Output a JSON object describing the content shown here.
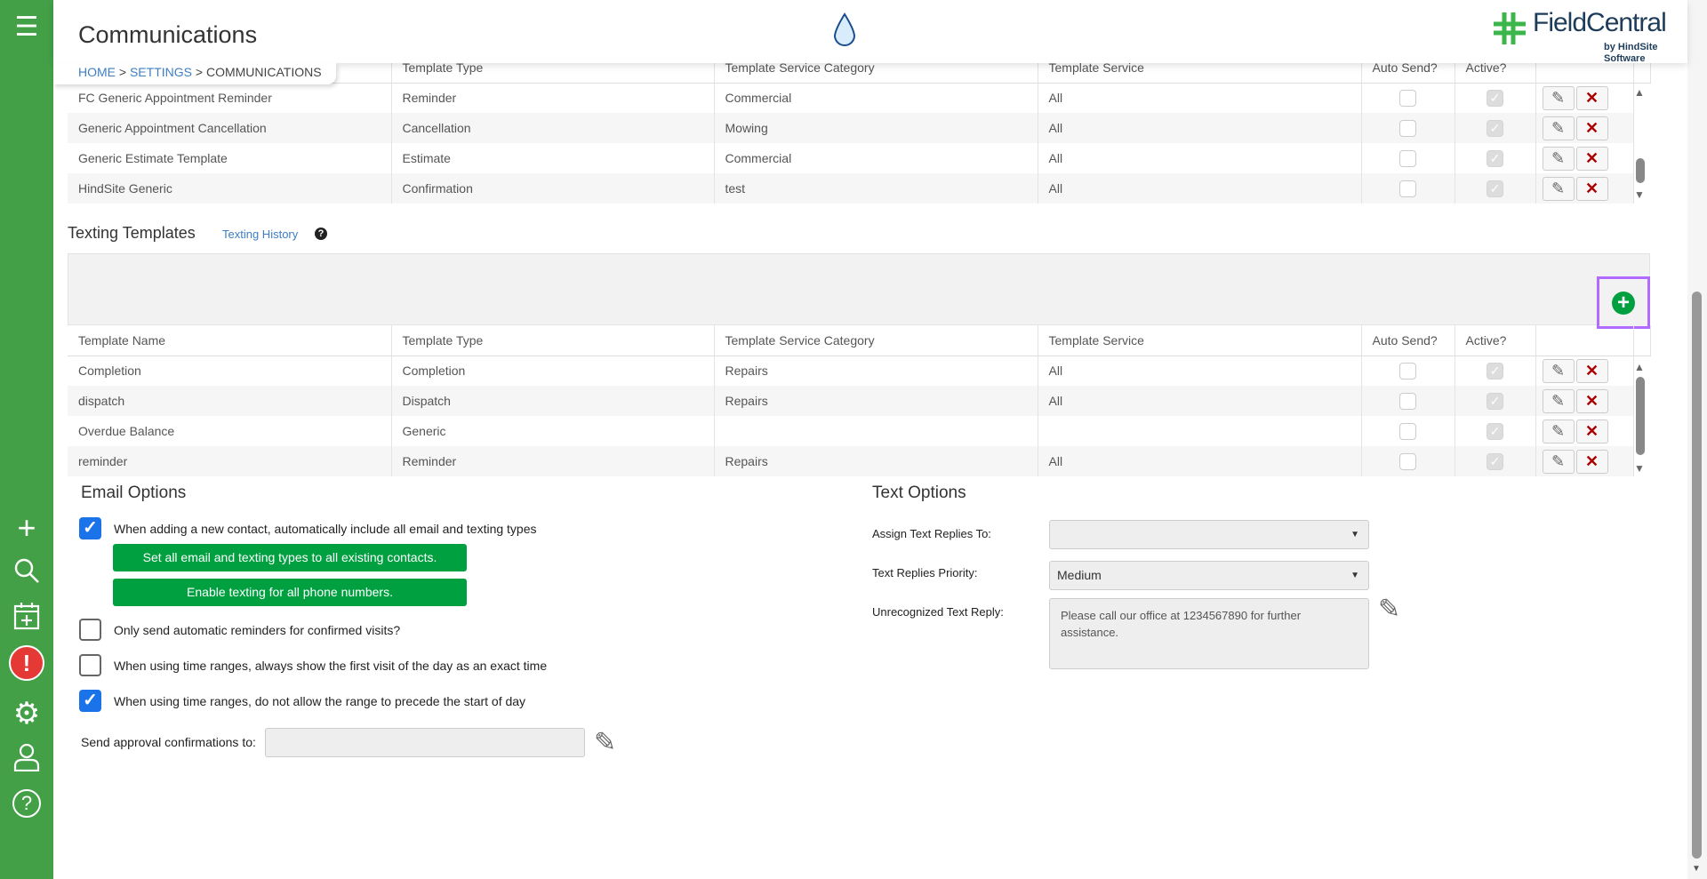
{
  "header": {
    "title": "Communications",
    "breadcrumb": {
      "home": "HOME",
      "settings": "SETTINGS",
      "current": "COMMUNICATIONS",
      "sep": " > "
    },
    "brand": "FieldCentral",
    "brand_sub": "by HindSite Software"
  },
  "columns": [
    "Template Name",
    "Template Type",
    "Template Service Category",
    "Template Service",
    "Auto Send?",
    "Active?"
  ],
  "email_templates": [
    {
      "name": "FC Generic Appointment Reminder",
      "type": "Reminder",
      "category": "Commercial",
      "service": "All",
      "auto": false,
      "active": true
    },
    {
      "name": "Generic Appointment Cancellation",
      "type": "Cancellation",
      "category": "Mowing",
      "service": "All",
      "auto": false,
      "active": true
    },
    {
      "name": "Generic Estimate Template",
      "type": "Estimate",
      "category": "Commercial",
      "service": "All",
      "auto": false,
      "active": true
    },
    {
      "name": "HindSite Generic",
      "type": "Confirmation",
      "category": "test",
      "service": "All",
      "auto": false,
      "active": true
    }
  ],
  "texting": {
    "title": "Texting Templates",
    "history_link": "Texting History",
    "rows": [
      {
        "name": "Completion",
        "type": "Completion",
        "category": "Repairs",
        "service": "All",
        "auto": false,
        "active": true
      },
      {
        "name": "dispatch",
        "type": "Dispatch",
        "category": "Repairs",
        "service": "All",
        "auto": false,
        "active": true
      },
      {
        "name": "Overdue Balance",
        "type": "Generic",
        "category": "",
        "service": "",
        "auto": false,
        "active": true
      },
      {
        "name": "reminder",
        "type": "Reminder",
        "category": "Repairs",
        "service": "All",
        "auto": false,
        "active": true
      }
    ]
  },
  "email_options": {
    "title": "Email Options",
    "opt1": {
      "label": "When adding a new contact, automatically include all email and texting types",
      "checked": true
    },
    "btn1": "Set all email and texting types to all existing contacts.",
    "btn2": "Enable texting for all phone numbers.",
    "opt2": {
      "label": "Only send automatic reminders for confirmed visits?",
      "checked": false
    },
    "opt3": {
      "label": "When using time ranges, always show the first visit of the day as an exact time",
      "checked": false
    },
    "opt4": {
      "label": "When using time ranges, do not allow the range to precede the start of day",
      "checked": true
    },
    "approval_label": "Send approval confirmations to:",
    "approval_value": ""
  },
  "text_options": {
    "title": "Text Options",
    "assign_label": "Assign Text Replies To:",
    "assign_value": "",
    "priority_label": "Text Replies Priority:",
    "priority_value": "Medium",
    "unrecognized_label": "Unrecognized Text Reply:",
    "unrecognized_value": "Please call our office at 1234567890 for further assistance."
  },
  "colors": {
    "sidebar": "#43a047",
    "button": "#00a040",
    "highlight": "#b36bff",
    "link": "#3d7ec4"
  }
}
